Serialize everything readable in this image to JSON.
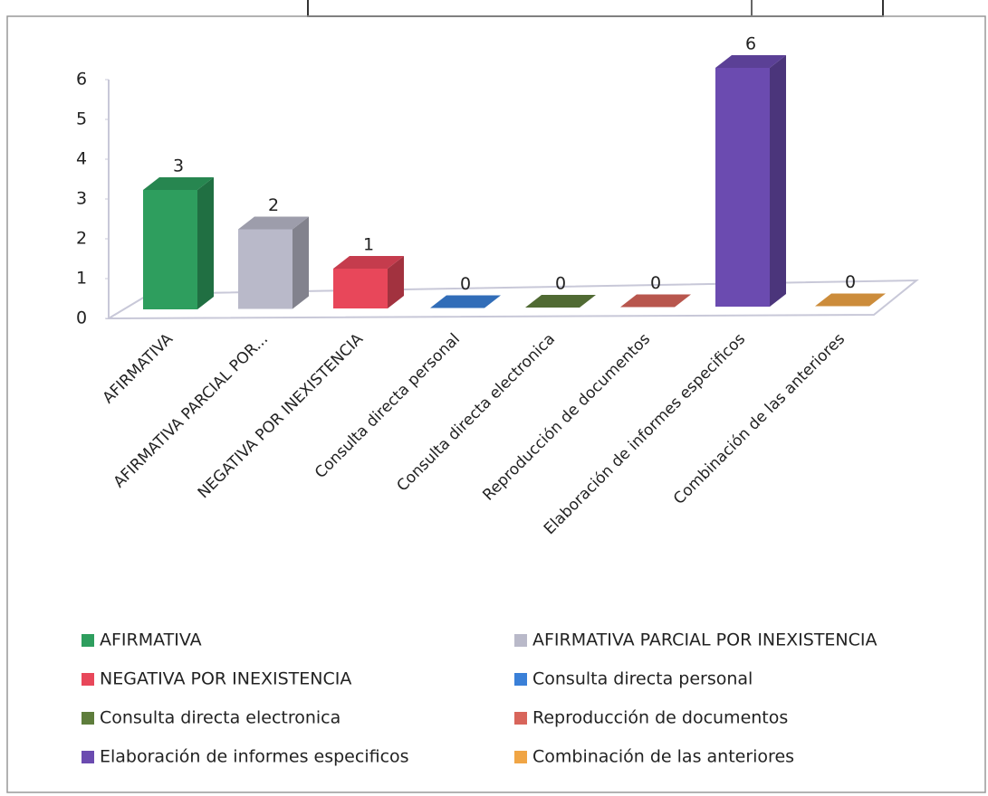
{
  "chart_data": {
    "type": "bar3d",
    "categories": [
      "AFIRMATIVA",
      "AFIRMATIVA PARCIAL POR...",
      "NEGATIVA POR INEXISTENCIA",
      "Consulta directa personal",
      "Consulta directa electronica",
      "Reproducción de documentos",
      "Elaboración de informes especificos",
      "Combinación de las anteriores"
    ],
    "values": [
      3,
      2,
      1,
      0,
      0,
      0,
      6,
      0
    ],
    "colors": [
      "#2e9e5e",
      "#b9b9c9",
      "#e8475a",
      "#3a80d8",
      "#5e7d3c",
      "#d8655b",
      "#6b4bb0",
      "#f0a545"
    ],
    "legend_labels": [
      "AFIRMATIVA",
      "AFIRMATIVA PARCIAL POR INEXISTENCIA",
      "NEGATIVA POR INEXISTENCIA",
      "Consulta directa personal",
      "Consulta directa electronica",
      "Reproducción de documentos",
      "Elaboración de informes especificos",
      "Combinación de las anteriores"
    ],
    "ylim": [
      0,
      6
    ],
    "yticks": [
      0,
      1,
      2,
      3,
      4,
      5,
      6
    ],
    "grid": false
  }
}
